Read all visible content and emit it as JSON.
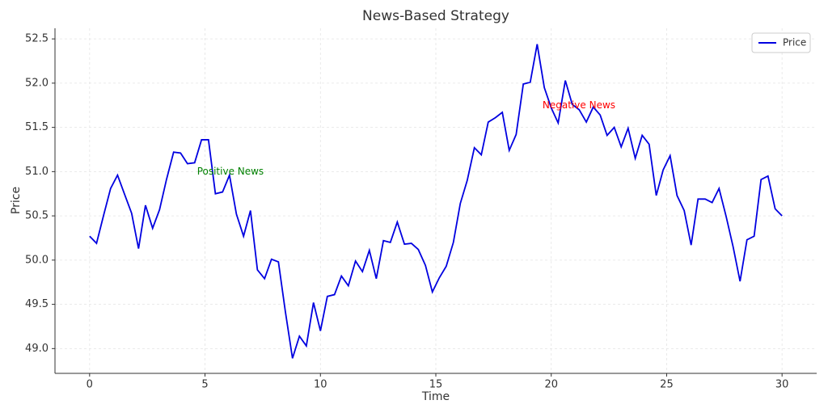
{
  "chart_data": {
    "type": "line",
    "title": "News-Based Strategy",
    "xlabel": "Time",
    "ylabel": "Price",
    "x": [
      0,
      0.3,
      0.61,
      0.91,
      1.21,
      1.52,
      1.82,
      2.12,
      2.42,
      2.73,
      3.03,
      3.33,
      3.64,
      3.94,
      4.24,
      4.55,
      4.85,
      5.15,
      5.45,
      5.76,
      6.06,
      6.36,
      6.67,
      6.97,
      7.27,
      7.58,
      7.88,
      8.18,
      8.48,
      8.79,
      9.09,
      9.39,
      9.7,
      10,
      10.3,
      10.61,
      10.91,
      11.21,
      11.52,
      11.82,
      12.12,
      12.42,
      12.73,
      13.03,
      13.33,
      13.64,
      13.94,
      14.24,
      14.55,
      14.85,
      15.15,
      15.45,
      15.76,
      16.06,
      16.36,
      16.67,
      16.97,
      17.27,
      17.58,
      17.88,
      18.18,
      18.48,
      18.79,
      19.09,
      19.39,
      19.7,
      20,
      20.3,
      20.61,
      20.91,
      21.21,
      21.52,
      21.82,
      22.12,
      22.42,
      22.73,
      23.03,
      23.33,
      23.64,
      23.94,
      24.24,
      24.55,
      24.85,
      25.15,
      25.45,
      25.76,
      26.06,
      26.36,
      26.67,
      26.97,
      27.27,
      27.58,
      27.88,
      28.18,
      28.48,
      28.79,
      29.09,
      29.39,
      29.7,
      30
    ],
    "series": [
      {
        "name": "Price",
        "color": "#0000e0",
        "values": [
          50.27,
          50.19,
          50.51,
          50.81,
          50.96,
          50.74,
          50.53,
          50.13,
          50.62,
          50.36,
          50.57,
          50.91,
          51.22,
          51.21,
          51.09,
          51.1,
          51.36,
          51.36,
          50.75,
          50.77,
          50.96,
          50.52,
          50.27,
          50.56,
          49.89,
          49.79,
          50.01,
          49.98,
          49.42,
          48.89,
          49.14,
          49.03,
          49.52,
          49.2,
          49.59,
          49.61,
          49.82,
          49.71,
          49.99,
          49.87,
          50.11,
          49.79,
          50.22,
          50.2,
          50.43,
          50.18,
          50.19,
          50.12,
          49.94,
          49.64,
          49.8,
          49.93,
          50.2,
          50.64,
          50.9,
          51.27,
          51.19,
          51.56,
          51.61,
          51.67,
          51.24,
          51.42,
          51.99,
          52.01,
          52.44,
          51.95,
          51.72,
          51.55,
          52.03,
          51.76,
          51.7,
          51.56,
          51.73,
          51.64,
          51.41,
          51.5,
          51.28,
          51.49,
          51.15,
          51.41,
          51.31,
          50.73,
          51.02,
          51.18,
          50.73,
          50.56,
          50.17,
          50.69,
          50.69,
          50.65,
          50.81,
          50.49,
          50.15,
          49.76,
          50.23,
          50.27,
          50.91,
          50.95,
          50.58,
          50.5
        ]
      }
    ],
    "annotations": [
      {
        "text": "Positive News",
        "x": 6.1,
        "y": 51.0,
        "color": "green"
      },
      {
        "text": "Negative News",
        "x": 21.2,
        "y": 51.75,
        "color": "red"
      }
    ],
    "xlim": [
      -1.5,
      31.5
    ],
    "xticks": [
      0,
      5,
      10,
      15,
      20,
      25,
      30
    ],
    "ylim": [
      48.72,
      52.62
    ],
    "yticks": [
      {
        "value": 49.0,
        "label": "49.0"
      },
      49.5,
      {
        "value": 50.0,
        "label": "50.0"
      },
      50.5,
      {
        "value": 51.0,
        "label": "51.0"
      },
      51.5,
      {
        "value": 52.0,
        "label": "52.0"
      },
      52.5
    ],
    "grid": true,
    "legend": "upper right"
  }
}
